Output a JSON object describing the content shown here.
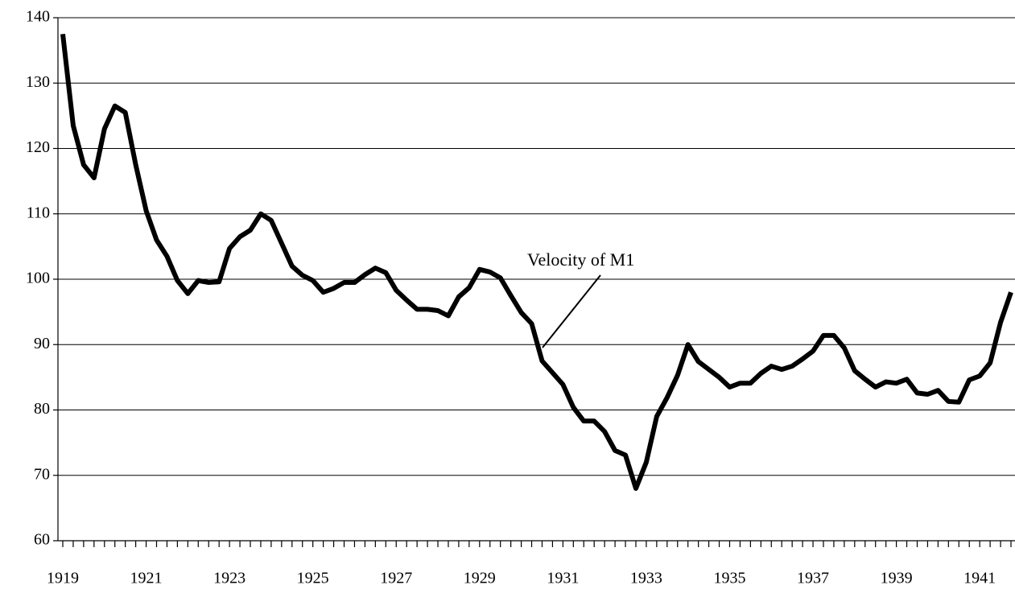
{
  "chart_data": {
    "type": "line",
    "annotation": "Velocity of M1",
    "color": "#000000",
    "categories": [
      "1919",
      null,
      null,
      null,
      null,
      null,
      null,
      null,
      "1921",
      null,
      null,
      null,
      null,
      null,
      null,
      null,
      "1923",
      null,
      null,
      null,
      null,
      null,
      null,
      null,
      "1925",
      null,
      null,
      null,
      null,
      null,
      null,
      null,
      "1927",
      null,
      null,
      null,
      null,
      null,
      null,
      null,
      "1929",
      null,
      null,
      null,
      null,
      null,
      null,
      null,
      "1931",
      null,
      null,
      null,
      null,
      null,
      null,
      null,
      "1933",
      null,
      null,
      null,
      null,
      null,
      null,
      null,
      "1935",
      null,
      null,
      null,
      null,
      null,
      null,
      null,
      "1937",
      null,
      null,
      null,
      null,
      null,
      null,
      null,
      "1939",
      null,
      null,
      null,
      null,
      null,
      null,
      null,
      "1941",
      null,
      null,
      null
    ],
    "values": [
      137.5,
      123.5,
      117.5,
      115.5,
      123,
      126.5,
      125.5,
      117.5,
      110.5,
      106,
      103.5,
      99.8,
      97.8,
      99.8,
      99.5,
      99.6,
      104.7,
      106.5,
      107.5,
      110,
      109,
      105.5,
      102,
      100.6,
      99.8,
      98,
      98.6,
      99.5,
      99.5,
      100.7,
      101.7,
      101,
      98.3,
      96.8,
      95.4,
      95.4,
      95.2,
      94.4,
      97.3,
      98.7,
      101.5,
      101.1,
      100.2,
      97.5,
      94.9,
      93.2,
      87.5,
      85.7,
      83.9,
      80.4,
      78.3,
      78.3,
      76.7,
      73.8,
      73.1,
      68,
      72,
      79,
      81.9,
      85.3,
      90,
      87.4,
      86.2,
      85,
      83.5,
      84.1,
      84.1,
      85.6,
      86.7,
      86.2,
      86.7,
      87.8,
      89,
      91.4,
      91.4,
      89.5,
      86,
      84.7,
      83.5,
      84.3,
      84.1,
      84.7,
      82.6,
      82.4,
      83,
      81.3,
      81.2,
      84.6,
      85.2,
      87.2,
      93.4,
      98
    ],
    "ylim": [
      60,
      140
    ],
    "yticks": [
      60,
      70,
      80,
      90,
      100,
      110,
      120,
      130,
      140
    ],
    "grid": true
  }
}
